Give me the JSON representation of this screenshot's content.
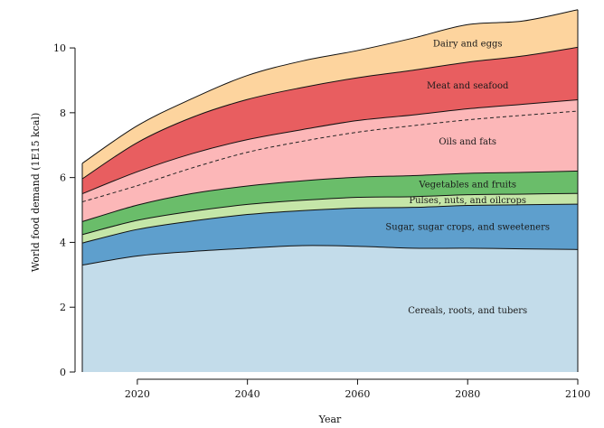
{
  "chart_data": {
    "type": "area",
    "stacked": true,
    "title": "",
    "xlabel": "Year",
    "ylabel": "World food demand (1E15 kcal)",
    "xlim": [
      2010,
      2100
    ],
    "ylim": [
      0,
      11.2
    ],
    "xticks": [
      2020,
      2040,
      2060,
      2080,
      2100
    ],
    "yticks": [
      0,
      2,
      4,
      6,
      8,
      10
    ],
    "grid": false,
    "legend": "none",
    "x": [
      2010,
      2020,
      2030,
      2040,
      2050,
      2060,
      2070,
      2080,
      2090,
      2100
    ],
    "series": [
      {
        "name": "Cereals, roots, and tubers",
        "color": "#c3dcea",
        "values": [
          3.3,
          3.58,
          3.72,
          3.82,
          3.9,
          3.88,
          3.82,
          3.82,
          3.8,
          3.78
        ]
      },
      {
        "name": "Sugar, sugar crops, and sweeteners",
        "color": "#5e9fcd",
        "values": [
          0.68,
          0.82,
          0.94,
          1.04,
          1.08,
          1.18,
          1.26,
          1.32,
          1.36,
          1.4
        ]
      },
      {
        "name": "Pulses, nuts, and oilcrops",
        "color": "#c5e6a8",
        "values": [
          0.26,
          0.28,
          0.3,
          0.31,
          0.32,
          0.33,
          0.33,
          0.33,
          0.33,
          0.33
        ]
      },
      {
        "name": "Vegetables and fruits",
        "color": "#6abd6a",
        "values": [
          0.4,
          0.47,
          0.55,
          0.57,
          0.6,
          0.62,
          0.65,
          0.66,
          0.67,
          0.69
        ]
      },
      {
        "name": "Oils and fats",
        "color": "#fcb7b8",
        "values": [
          0.86,
          1.03,
          1.23,
          1.43,
          1.58,
          1.75,
          1.87,
          1.99,
          2.1,
          2.2
        ]
      },
      {
        "name": "Meat and seafood",
        "color": "#e85e60",
        "values": [
          0.46,
          0.9,
          1.12,
          1.24,
          1.3,
          1.32,
          1.38,
          1.44,
          1.49,
          1.62
        ]
      },
      {
        "name": "Dairy and eggs",
        "color": "#fdd49e",
        "values": [
          0.48,
          0.52,
          0.58,
          0.74,
          0.82,
          0.84,
          0.99,
          1.16,
          1.08,
          1.16
        ]
      }
    ],
    "dashed_line": {
      "values": [
        5.25,
        5.75,
        6.3,
        6.78,
        7.12,
        7.4,
        7.6,
        7.78,
        7.92,
        8.05
      ]
    }
  }
}
